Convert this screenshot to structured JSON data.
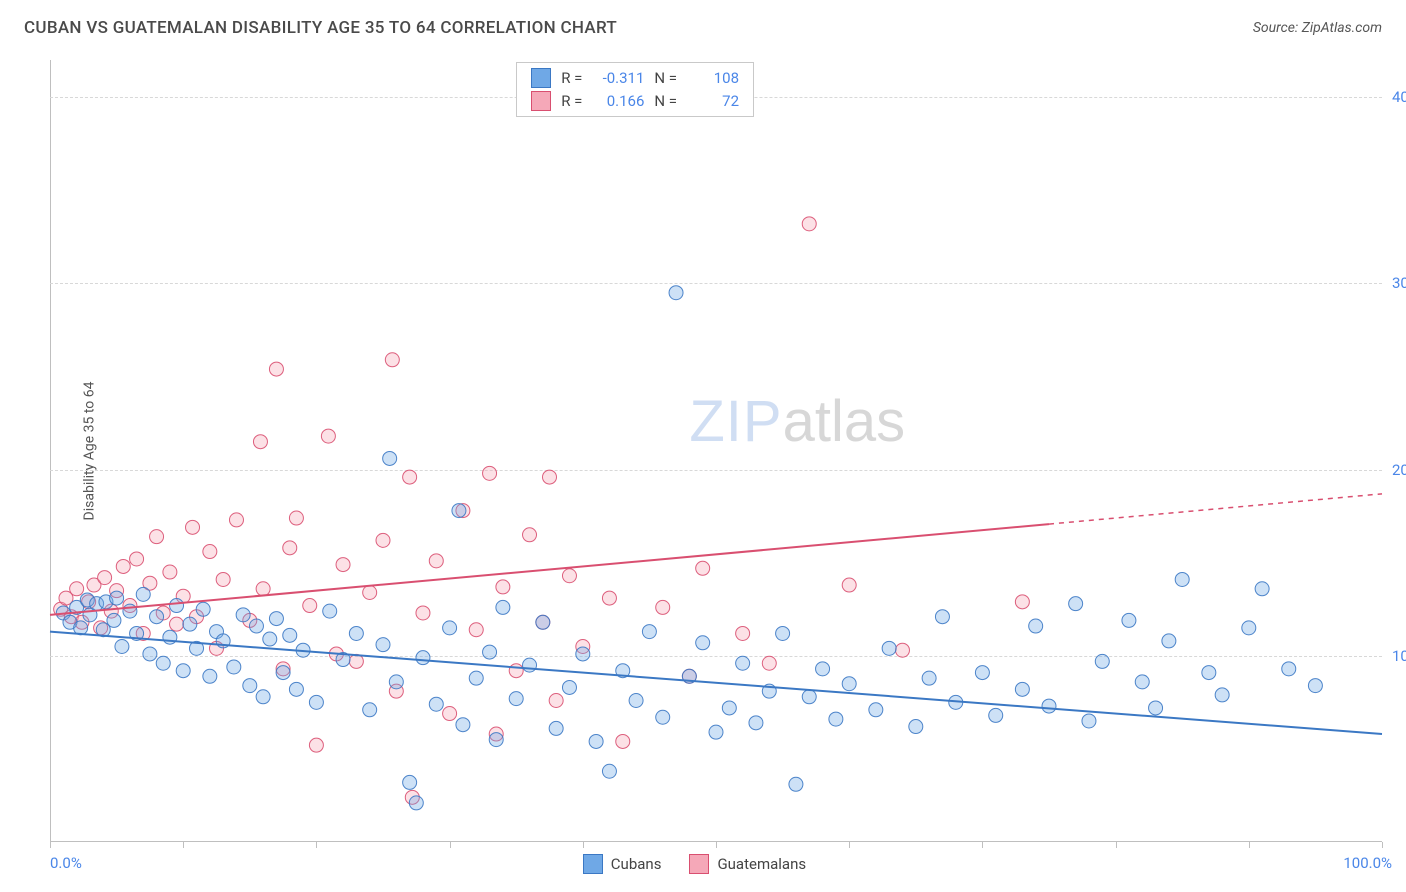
{
  "header": {
    "title": "CUBAN VS GUATEMALAN DISABILITY AGE 35 TO 64 CORRELATION CHART",
    "source": "Source: ZipAtlas.com"
  },
  "chart": {
    "type": "scatter",
    "ylabel": "Disability Age 35 to 64",
    "xlim": [
      0,
      100
    ],
    "ylim": [
      0,
      42
    ],
    "y_ticks": [
      10,
      20,
      30,
      40
    ],
    "y_tick_labels": [
      "10.0%",
      "20.0%",
      "30.0%",
      "40.0%"
    ],
    "x_ticks": [
      0,
      10,
      20,
      30,
      40,
      50,
      60,
      70,
      80,
      90,
      100
    ],
    "x_label_min": "0.0%",
    "x_label_max": "100.0%",
    "grid_color": "#d8d8d8",
    "axis_color": "#bfbfbf",
    "background": "#ffffff",
    "tick_label_color": "#4a86e8",
    "marker_radius": 7,
    "marker_stroke_opacity": 0.9,
    "marker_fill_opacity": 0.35,
    "line_width": 2,
    "series": [
      {
        "name": "Cubans",
        "color": "#6fa8e6",
        "stroke": "#3b78c4",
        "r": -0.311,
        "n": 108,
        "trend": {
          "y_at_x0": 11.3,
          "y_at_x100": 5.8,
          "solid_until_x": 100
        },
        "points": [
          [
            1,
            12.3
          ],
          [
            1.5,
            11.8
          ],
          [
            2,
            12.6
          ],
          [
            2.3,
            11.5
          ],
          [
            2.8,
            13
          ],
          [
            3,
            12.2
          ],
          [
            3.5,
            12.8
          ],
          [
            4,
            11.4
          ],
          [
            4.2,
            12.9
          ],
          [
            4.8,
            11.9
          ],
          [
            5,
            13.1
          ],
          [
            5.4,
            10.5
          ],
          [
            6,
            12.4
          ],
          [
            6.5,
            11.2
          ],
          [
            7,
            13.3
          ],
          [
            7.5,
            10.1
          ],
          [
            8,
            12.1
          ],
          [
            8.5,
            9.6
          ],
          [
            9,
            11
          ],
          [
            9.5,
            12.7
          ],
          [
            10,
            9.2
          ],
          [
            10.5,
            11.7
          ],
          [
            11,
            10.4
          ],
          [
            11.5,
            12.5
          ],
          [
            12,
            8.9
          ],
          [
            12.5,
            11.3
          ],
          [
            13,
            10.8
          ],
          [
            13.8,
            9.4
          ],
          [
            14.5,
            12.2
          ],
          [
            15,
            8.4
          ],
          [
            15.5,
            11.6
          ],
          [
            16,
            7.8
          ],
          [
            16.5,
            10.9
          ],
          [
            17,
            12
          ],
          [
            17.5,
            9.1
          ],
          [
            18,
            11.1
          ],
          [
            18.5,
            8.2
          ],
          [
            19,
            10.3
          ],
          [
            20,
            7.5
          ],
          [
            21,
            12.4
          ],
          [
            22,
            9.8
          ],
          [
            23,
            11.2
          ],
          [
            24,
            7.1
          ],
          [
            25,
            10.6
          ],
          [
            25.5,
            20.6
          ],
          [
            26,
            8.6
          ],
          [
            27,
            3.2
          ],
          [
            27.5,
            2.1
          ],
          [
            28,
            9.9
          ],
          [
            29,
            7.4
          ],
          [
            30,
            11.5
          ],
          [
            30.7,
            17.8
          ],
          [
            31,
            6.3
          ],
          [
            32,
            8.8
          ],
          [
            33,
            10.2
          ],
          [
            33.5,
            5.5
          ],
          [
            34,
            12.6
          ],
          [
            35,
            7.7
          ],
          [
            36,
            9.5
          ],
          [
            37,
            11.8
          ],
          [
            38,
            6.1
          ],
          [
            39,
            8.3
          ],
          [
            40,
            10.1
          ],
          [
            41,
            5.4
          ],
          [
            42,
            3.8
          ],
          [
            43,
            9.2
          ],
          [
            44,
            7.6
          ],
          [
            45,
            11.3
          ],
          [
            46,
            6.7
          ],
          [
            47,
            29.5
          ],
          [
            48,
            8.9
          ],
          [
            49,
            10.7
          ],
          [
            50,
            5.9
          ],
          [
            51,
            7.2
          ],
          [
            52,
            9.6
          ],
          [
            53,
            6.4
          ],
          [
            54,
            8.1
          ],
          [
            55,
            11.2
          ],
          [
            56,
            3.1
          ],
          [
            57,
            7.8
          ],
          [
            58,
            9.3
          ],
          [
            59,
            6.6
          ],
          [
            60,
            8.5
          ],
          [
            62,
            7.1
          ],
          [
            63,
            10.4
          ],
          [
            65,
            6.2
          ],
          [
            66,
            8.8
          ],
          [
            67,
            12.1
          ],
          [
            68,
            7.5
          ],
          [
            70,
            9.1
          ],
          [
            71,
            6.8
          ],
          [
            73,
            8.2
          ],
          [
            74,
            11.6
          ],
          [
            75,
            7.3
          ],
          [
            77,
            12.8
          ],
          [
            78,
            6.5
          ],
          [
            79,
            9.7
          ],
          [
            81,
            11.9
          ],
          [
            82,
            8.6
          ],
          [
            83,
            7.2
          ],
          [
            84,
            10.8
          ],
          [
            85,
            14.1
          ],
          [
            87,
            9.1
          ],
          [
            88,
            7.9
          ],
          [
            90,
            11.5
          ],
          [
            91,
            13.6
          ],
          [
            93,
            9.3
          ],
          [
            95,
            8.4
          ]
        ]
      },
      {
        "name": "Guatemalans",
        "color": "#f5a8b8",
        "stroke": "#d94f70",
        "r": 0.166,
        "n": 72,
        "trend": {
          "y_at_x0": 12.2,
          "y_at_x100": 18.7,
          "solid_until_x": 75
        },
        "points": [
          [
            0.8,
            12.5
          ],
          [
            1.2,
            13.1
          ],
          [
            1.6,
            12.1
          ],
          [
            2,
            13.6
          ],
          [
            2.4,
            11.8
          ],
          [
            2.9,
            12.9
          ],
          [
            3.3,
            13.8
          ],
          [
            3.8,
            11.5
          ],
          [
            4.1,
            14.2
          ],
          [
            4.6,
            12.4
          ],
          [
            5,
            13.5
          ],
          [
            5.5,
            14.8
          ],
          [
            6,
            12.7
          ],
          [
            6.5,
            15.2
          ],
          [
            7,
            11.2
          ],
          [
            7.5,
            13.9
          ],
          [
            8,
            16.4
          ],
          [
            8.5,
            12.3
          ],
          [
            9,
            14.5
          ],
          [
            9.5,
            11.7
          ],
          [
            10,
            13.2
          ],
          [
            10.7,
            16.9
          ],
          [
            11,
            12.1
          ],
          [
            12,
            15.6
          ],
          [
            12.5,
            10.4
          ],
          [
            13,
            14.1
          ],
          [
            14,
            17.3
          ],
          [
            15,
            11.9
          ],
          [
            15.8,
            21.5
          ],
          [
            16,
            13.6
          ],
          [
            17,
            25.4
          ],
          [
            17.5,
            9.3
          ],
          [
            18,
            15.8
          ],
          [
            18.5,
            17.4
          ],
          [
            19.5,
            12.7
          ],
          [
            20,
            5.2
          ],
          [
            20.9,
            21.8
          ],
          [
            21.5,
            10.1
          ],
          [
            22,
            14.9
          ],
          [
            23,
            9.7
          ],
          [
            24,
            13.4
          ],
          [
            25,
            16.2
          ],
          [
            25.7,
            25.9
          ],
          [
            26,
            8.1
          ],
          [
            27,
            19.6
          ],
          [
            27.2,
            2.4
          ],
          [
            28,
            12.3
          ],
          [
            29,
            15.1
          ],
          [
            30,
            6.9
          ],
          [
            31,
            17.8
          ],
          [
            32,
            11.4
          ],
          [
            33,
            19.8
          ],
          [
            33.5,
            5.8
          ],
          [
            34,
            13.7
          ],
          [
            35,
            9.2
          ],
          [
            36,
            16.5
          ],
          [
            37,
            11.8
          ],
          [
            37.5,
            19.6
          ],
          [
            38,
            7.6
          ],
          [
            39,
            14.3
          ],
          [
            40,
            10.5
          ],
          [
            42,
            13.1
          ],
          [
            43,
            5.4
          ],
          [
            46,
            12.6
          ],
          [
            48,
            8.9
          ],
          [
            49,
            14.7
          ],
          [
            52,
            11.2
          ],
          [
            54,
            9.6
          ],
          [
            57,
            33.2
          ],
          [
            60,
            13.8
          ],
          [
            64,
            10.3
          ],
          [
            73,
            12.9
          ]
        ]
      }
    ],
    "corr_legend_labels": {
      "r_label": "R =",
      "n_label": "N ="
    },
    "bottom_legend": [
      {
        "label": "Cubans",
        "series_index": 0
      },
      {
        "label": "Guatemalans",
        "series_index": 1
      }
    ],
    "watermark": {
      "part1": "ZIP",
      "part2": "atlas"
    }
  }
}
